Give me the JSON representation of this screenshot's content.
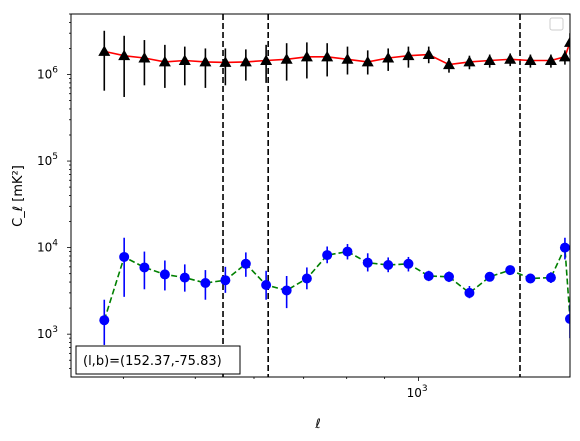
{
  "chart_data": {
    "type": "scatter",
    "xlabel": "ℓ",
    "ylabel": "C_ℓ  [mK²]",
    "x_scale": "log",
    "y_scale": "log",
    "xlim": [
      340,
      1600
    ],
    "ylim": [
      320,
      5000000
    ],
    "x_tick_labels": [
      {
        "value": 1000,
        "base": "10",
        "exp": "3"
      }
    ],
    "y_tick_labels": [
      {
        "value": 1000,
        "base": "10",
        "exp": "3"
      },
      {
        "value": 10000,
        "base": "10",
        "exp": "4"
      },
      {
        "value": 100000,
        "base": "10",
        "exp": "5"
      },
      {
        "value": 1000000,
        "base": "10",
        "exp": "6"
      }
    ],
    "grid": false,
    "legend": {
      "position": "top-right",
      "entries": []
    },
    "annotation": "(l,b)=(152.37,-75.83)",
    "vertical_lines_x": [
      545,
      627,
      1370
    ],
    "series": [
      {
        "marker": "triangle",
        "color": "#000000",
        "line_color": "#ff0000",
        "line_style": "solid",
        "x": [
          377,
          401,
          427,
          455,
          484,
          516,
          549,
          585,
          623,
          664,
          707,
          753,
          802,
          854,
          910,
          969,
          1032,
          1099,
          1171,
          1247,
          1329,
          1415,
          1508,
          1575
        ],
        "y": [
          1850000,
          1650000,
          1550000,
          1400000,
          1450000,
          1400000,
          1380000,
          1400000,
          1450000,
          1500000,
          1600000,
          1600000,
          1500000,
          1400000,
          1550000,
          1650000,
          1700000,
          1300000,
          1400000,
          1450000,
          1500000,
          1450000,
          1450000,
          1600000
        ],
        "y_low": [
          650000,
          550000,
          750000,
          700000,
          750000,
          700000,
          750000,
          850000,
          800000,
          850000,
          900000,
          950000,
          1000000,
          1000000,
          1100000,
          1200000,
          1350000,
          1050000,
          1150000,
          1200000,
          1250000,
          1200000,
          1200000,
          1300000
        ],
        "y_high": [
          3200000,
          2800000,
          2500000,
          2200000,
          2100000,
          2000000,
          2000000,
          1950000,
          2200000,
          2300000,
          2350000,
          2300000,
          2100000,
          1900000,
          2000000,
          2100000,
          2100000,
          1550000,
          1650000,
          1700000,
          1750000,
          1700000,
          1700000,
          1900000
        ]
      },
      {
        "marker": "circle",
        "color": "#0000ff",
        "line_color": "#008000",
        "line_style": "dashed",
        "x": [
          377,
          401,
          427,
          455,
          484,
          516,
          549,
          585,
          623,
          664,
          707,
          753,
          802,
          854,
          910,
          969,
          1032,
          1099,
          1171,
          1247,
          1329,
          1415,
          1508,
          1575
        ],
        "y": [
          1450,
          7800,
          5900,
          4900,
          4500,
          3900,
          4200,
          6500,
          3700,
          3200,
          4400,
          8200,
          9000,
          6700,
          6300,
          6500,
          4700,
          4600,
          3000,
          4600,
          5500,
          4400,
          4500,
          10000
        ],
        "y_low": [
          750,
          2700,
          3300,
          3200,
          3100,
          2500,
          3000,
          4600,
          2500,
          2000,
          3300,
          6600,
          7300,
          5300,
          5200,
          5300,
          4100,
          4000,
          2600,
          4200,
          5000,
          3900,
          3900,
          7300
        ],
        "y_high": [
          2500,
          13000,
          9000,
          7100,
          6400,
          5500,
          6000,
          8800,
          5400,
          4700,
          5900,
          10300,
          11000,
          8600,
          7700,
          7800,
          5400,
          5300,
          3600,
          5100,
          6100,
          5000,
          5200,
          13000
        ]
      }
    ],
    "extra_points": [
      {
        "series": 0,
        "x": 1600,
        "y": 2350000,
        "y_low": 1700000,
        "y_high": 3000000
      },
      {
        "series": 1,
        "x": 1600,
        "y": 1500,
        "y_low": 900,
        "y_high": 2200
      }
    ]
  }
}
